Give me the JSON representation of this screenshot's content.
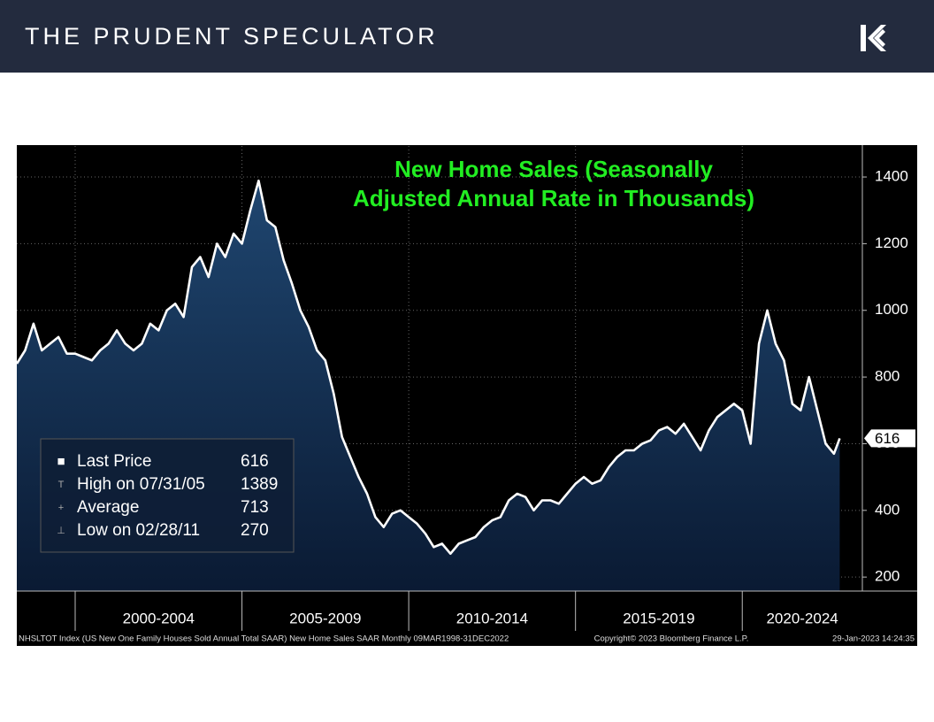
{
  "header": "THE PRUDENT SPECULATOR",
  "chart_data": {
    "type": "area",
    "title": [
      "New Home Sales (Seasonally",
      "Adjusted Annual Rate in Thousands)"
    ],
    "x": [
      1998.25,
      1998.5,
      1998.75,
      1999,
      1999.25,
      1999.5,
      1999.75,
      2000,
      2000.25,
      2000.5,
      2000.75,
      2001,
      2001.25,
      2001.5,
      2001.75,
      2002,
      2002.25,
      2002.5,
      2002.75,
      2003,
      2003.25,
      2003.5,
      2003.75,
      2004,
      2004.25,
      2004.5,
      2004.75,
      2005,
      2005.25,
      2005.5,
      2005.75,
      2006,
      2006.25,
      2006.5,
      2006.75,
      2007,
      2007.25,
      2007.5,
      2007.75,
      2008,
      2008.25,
      2008.5,
      2008.75,
      2009,
      2009.25,
      2009.5,
      2009.75,
      2010,
      2010.25,
      2010.5,
      2010.75,
      2011,
      2011.25,
      2011.5,
      2011.75,
      2012,
      2012.25,
      2012.5,
      2012.75,
      2013,
      2013.25,
      2013.5,
      2013.75,
      2014,
      2014.25,
      2014.5,
      2014.75,
      2015,
      2015.25,
      2015.5,
      2015.75,
      2016,
      2016.25,
      2016.5,
      2016.75,
      2017,
      2017.25,
      2017.5,
      2017.75,
      2018,
      2018.25,
      2018.5,
      2018.75,
      2019,
      2019.25,
      2019.5,
      2019.75,
      2020,
      2020.25,
      2020.5,
      2020.75,
      2021,
      2021.25,
      2021.5,
      2021.75,
      2022,
      2022.25,
      2022.5,
      2022.75,
      2022.92
    ],
    "values": [
      840,
      880,
      960,
      880,
      900,
      920,
      870,
      870,
      860,
      850,
      880,
      900,
      940,
      900,
      880,
      900,
      960,
      940,
      1000,
      1020,
      980,
      1130,
      1160,
      1100,
      1200,
      1160,
      1230,
      1200,
      1300,
      1389,
      1270,
      1250,
      1150,
      1080,
      1000,
      950,
      880,
      850,
      750,
      620,
      560,
      500,
      450,
      380,
      350,
      390,
      400,
      380,
      360,
      330,
      290,
      300,
      270,
      300,
      310,
      320,
      350,
      370,
      380,
      430,
      450,
      440,
      400,
      430,
      430,
      420,
      450,
      480,
      500,
      480,
      490,
      530,
      560,
      580,
      580,
      600,
      610,
      640,
      650,
      630,
      660,
      620,
      580,
      640,
      680,
      700,
      720,
      700,
      600,
      900,
      1000,
      900,
      850,
      720,
      700,
      800,
      700,
      600,
      570,
      616
    ],
    "color": "#ffffff",
    "xlim": [
      1998.25,
      2023.6
    ],
    "xticks": [
      {
        "value": 2000,
        "label": "2000-2004"
      },
      {
        "value": 2005,
        "label": "2005-2009"
      },
      {
        "value": 2010,
        "label": "2010-2014"
      },
      {
        "value": 2015,
        "label": "2015-2019"
      },
      {
        "value": 2020,
        "label": "2020-2024"
      }
    ],
    "ylim": [
      158,
      1493
    ],
    "yticks": [
      200,
      400,
      600,
      800,
      1000,
      1200,
      1400
    ],
    "grid": true,
    "legend": [
      {
        "label": "Last Price",
        "value": 616
      },
      {
        "label": "High on 07/31/05",
        "value": 1389
      },
      {
        "label": "Average",
        "value": 713
      },
      {
        "label": "Low on 02/28/11",
        "value": 270
      }
    ],
    "footer_left": "NHSLTOT Index (US New One Family Houses Sold Annual Total SAAR) New Home Sales SAAR  Monthly 09MAR1998-31DEC2022",
    "footer_center": "Copyright© 2023 Bloomberg Finance L.P.",
    "footer_right": "29-Jan-2023 14:24:35"
  }
}
